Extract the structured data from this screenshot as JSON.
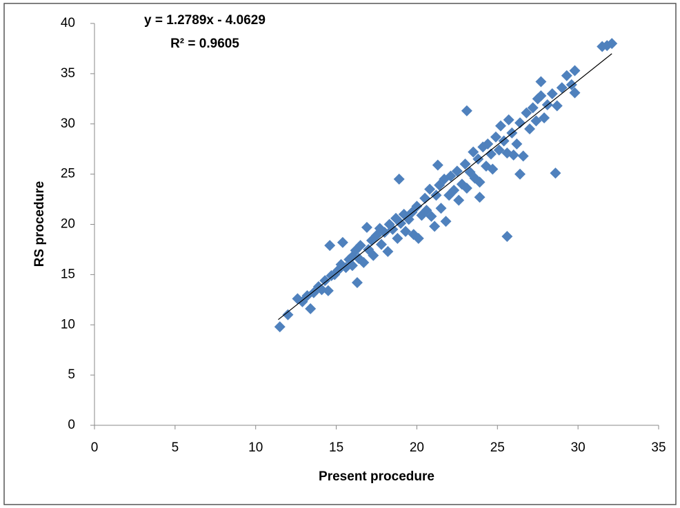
{
  "chart_data": {
    "type": "scatter",
    "annotations": [
      "y = 1.2789x - 4.0629",
      "R² = 0.9605"
    ],
    "x_label": "Present procedure",
    "y_label": "RS procedure",
    "x": [
      11.5,
      12.0,
      14.6,
      16.3,
      18.9,
      23.1,
      25.6,
      28.6,
      27.7,
      31.5,
      31.8,
      32.1,
      29.8,
      26.4,
      23.9,
      21.3,
      12.6,
      12.9,
      13.2,
      13.4,
      13.6,
      13.9,
      14.1,
      14.3,
      14.5,
      14.7,
      14.9,
      15.1,
      15.3,
      15.4,
      15.6,
      15.8,
      16.0,
      16.0,
      16.2,
      16.4,
      16.5,
      16.7,
      16.9,
      17.0,
      17.2,
      17.3,
      17.5,
      17.7,
      17.8,
      18.0,
      18.2,
      18.3,
      18.5,
      18.7,
      18.8,
      19.0,
      19.2,
      19.3,
      19.5,
      19.7,
      19.8,
      20.0,
      20.1,
      20.3,
      20.5,
      20.6,
      20.8,
      20.9,
      21.1,
      21.2,
      21.4,
      21.5,
      21.7,
      21.8,
      22.0,
      22.1,
      22.3,
      22.5,
      22.6,
      22.8,
      23.0,
      23.1,
      23.3,
      23.5,
      23.6,
      23.8,
      23.9,
      24.1,
      24.3,
      24.4,
      24.6,
      24.7,
      24.9,
      25.1,
      25.2,
      25.4,
      25.6,
      25.7,
      25.9,
      26.0,
      26.2,
      26.4,
      26.6,
      26.8,
      27.0,
      27.2,
      27.4,
      27.5,
      27.7,
      27.9,
      28.1,
      28.4,
      28.7,
      29.0,
      29.3,
      29.6,
      29.8
    ],
    "values": [
      9.8,
      11.0,
      17.9,
      14.2,
      24.5,
      31.3,
      18.8,
      25.1,
      34.2,
      37.7,
      37.8,
      38.0,
      35.3,
      25.0,
      22.7,
      25.9,
      12.6,
      12.3,
      12.9,
      11.6,
      13.2,
      13.8,
      13.5,
      14.4,
      13.4,
      14.9,
      15.0,
      15.4,
      16.0,
      18.2,
      15.7,
      16.5,
      16.8,
      15.9,
      17.4,
      16.6,
      17.9,
      16.2,
      19.7,
      17.5,
      18.4,
      16.9,
      18.9,
      19.6,
      18.0,
      19.2,
      17.3,
      20.0,
      19.5,
      20.6,
      18.6,
      20.1,
      21.0,
      19.3,
      20.5,
      21.2,
      19.0,
      21.8,
      18.6,
      20.9,
      22.6,
      21.4,
      23.5,
      20.8,
      19.8,
      22.9,
      23.9,
      21.6,
      24.5,
      20.3,
      22.9,
      24.8,
      23.4,
      25.3,
      22.4,
      24.0,
      26.0,
      23.6,
      25.2,
      27.2,
      24.6,
      26.5,
      24.2,
      27.7,
      25.8,
      28.0,
      27.0,
      25.5,
      28.7,
      27.4,
      29.8,
      28.3,
      27.1,
      30.4,
      29.1,
      26.9,
      28.0,
      30.1,
      26.8,
      31.1,
      29.5,
      31.6,
      30.3,
      32.5,
      32.8,
      30.6,
      31.9,
      33.0,
      31.8,
      33.6,
      34.8,
      33.9,
      33.1
    ],
    "color": "#4f81bd",
    "trendline": {
      "x": [
        11.4,
        32.1
      ],
      "y": [
        10.52,
        36.99
      ],
      "color": "#000000"
    },
    "xlim": [
      0,
      35
    ],
    "xticks": [
      0,
      5,
      10,
      15,
      20,
      25,
      30,
      35
    ],
    "ylim": [
      0,
      40
    ],
    "yticks": [
      0,
      5,
      10,
      15,
      20,
      25,
      30,
      35,
      40
    ],
    "grid": false
  }
}
